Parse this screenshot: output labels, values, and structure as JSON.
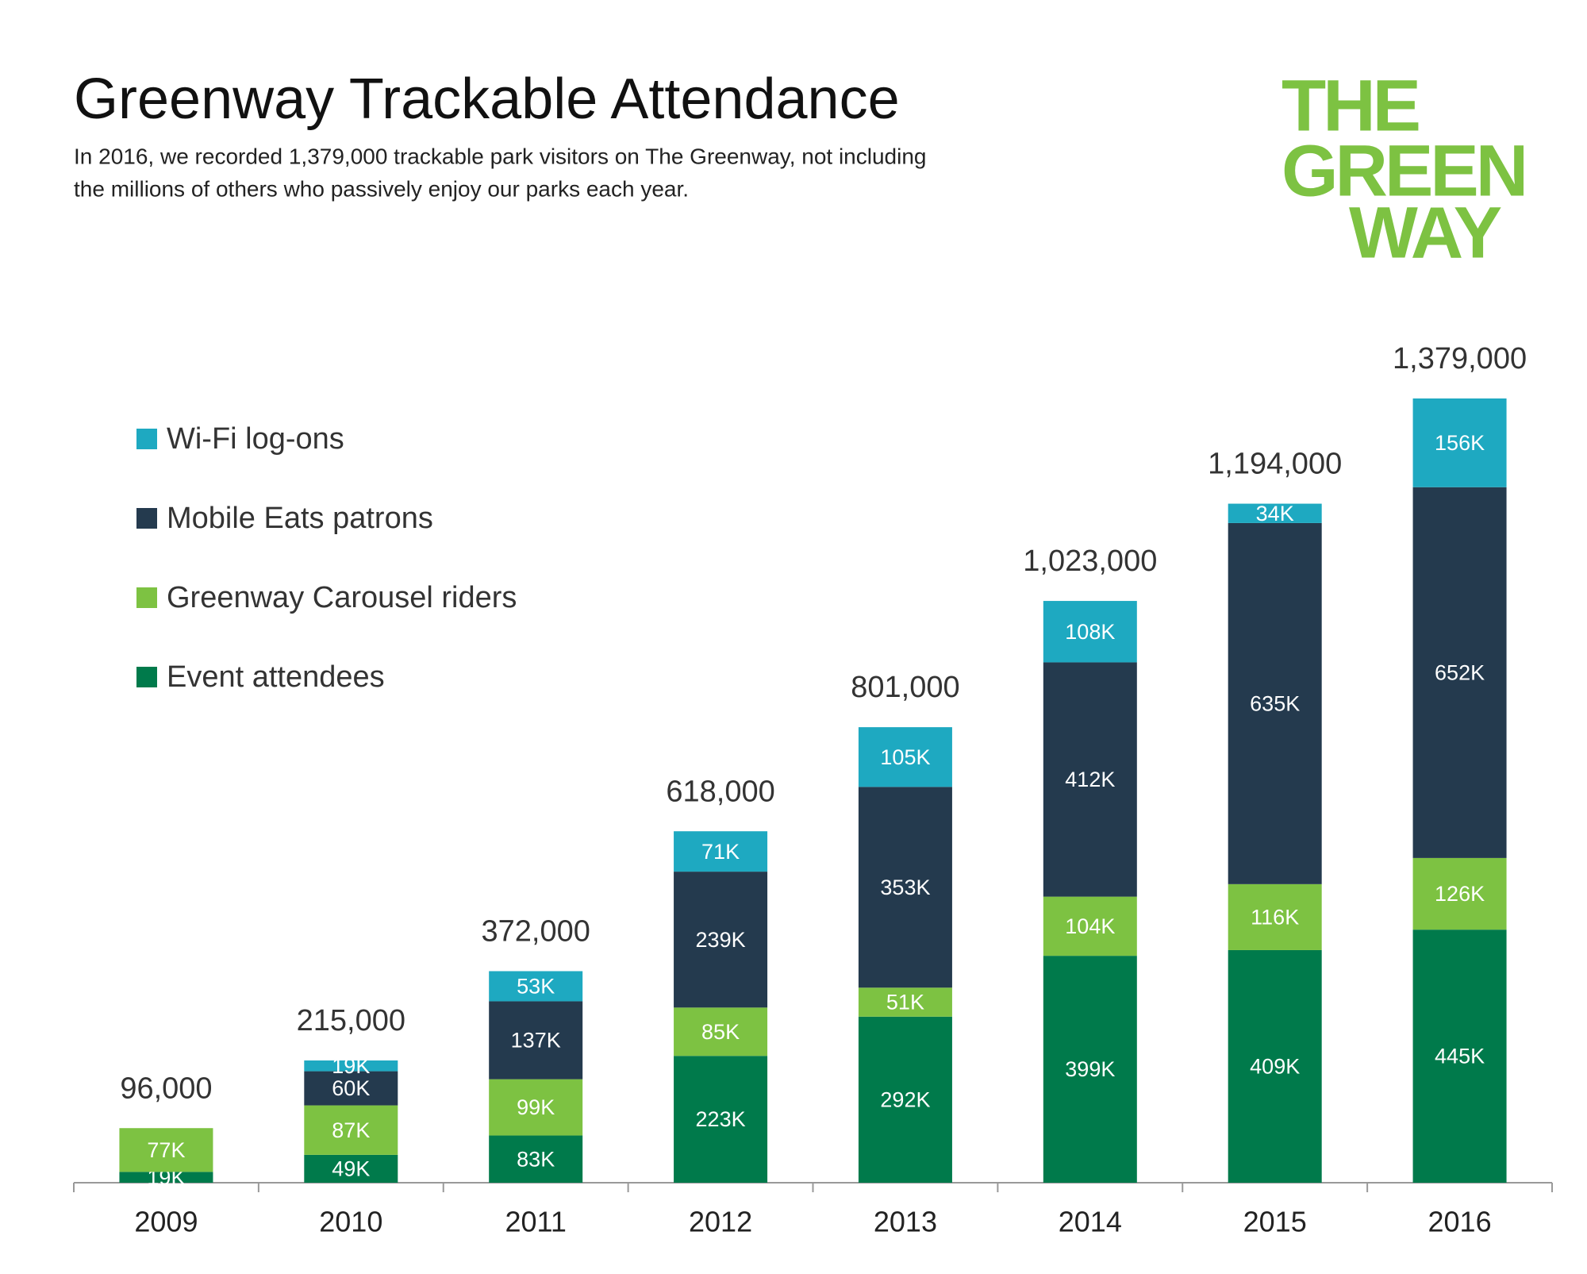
{
  "chart_data": {
    "type": "stacked-bar",
    "title": "Greenway Trackable Attendance",
    "subtitle": [
      "In 2016, we recorded 1,379,000 trackable park visitors on The Greenway, not including",
      "the millions of others who passively enjoy our parks each year."
    ],
    "logo": [
      "THE",
      "GREEN",
      "WAY"
    ],
    "categories": [
      "2009",
      "2010",
      "2011",
      "2012",
      "2013",
      "2014",
      "2015",
      "2016"
    ],
    "series": [
      {
        "name": "Event attendees",
        "color": "#007a4b",
        "values": [
          19000,
          49000,
          83000,
          223000,
          292000,
          399000,
          409000,
          445000
        ],
        "value_labels": [
          "19K",
          "49K",
          "83K",
          "223K",
          "292K",
          "399K",
          "409K",
          "445K"
        ]
      },
      {
        "name": "Greenway Carousel riders",
        "color": "#7dc242",
        "values": [
          77000,
          87000,
          99000,
          85000,
          51000,
          104000,
          116000,
          126000
        ],
        "value_labels": [
          "77K",
          "87K",
          "99K",
          "85K",
          "51K",
          "104K",
          "116K",
          "126K"
        ]
      },
      {
        "name": "Mobile Eats patrons",
        "color": "#243a4e",
        "values": [
          null,
          60000,
          137000,
          239000,
          353000,
          412000,
          635000,
          652000
        ],
        "value_labels": [
          null,
          "60K",
          "137K",
          "239K",
          "353K",
          "412K",
          "635K",
          "652K"
        ]
      },
      {
        "name": "Wi-Fi log-ons",
        "color": "#1ea9c1",
        "values": [
          null,
          19000,
          53000,
          71000,
          105000,
          108000,
          34000,
          156000
        ],
        "value_labels": [
          null,
          "19K",
          "53K",
          "71K",
          "105K",
          "108K",
          "34K",
          "156K"
        ]
      }
    ],
    "totals": {
      "values": [
        96000,
        215000,
        372000,
        618000,
        801000,
        1023000,
        1194000,
        1379000
      ],
      "value_labels": [
        "96,000",
        "215,000",
        "372,000",
        "618,000",
        "801,000",
        "1,023,000",
        "1,194,000",
        "1,379,000"
      ]
    }
  }
}
